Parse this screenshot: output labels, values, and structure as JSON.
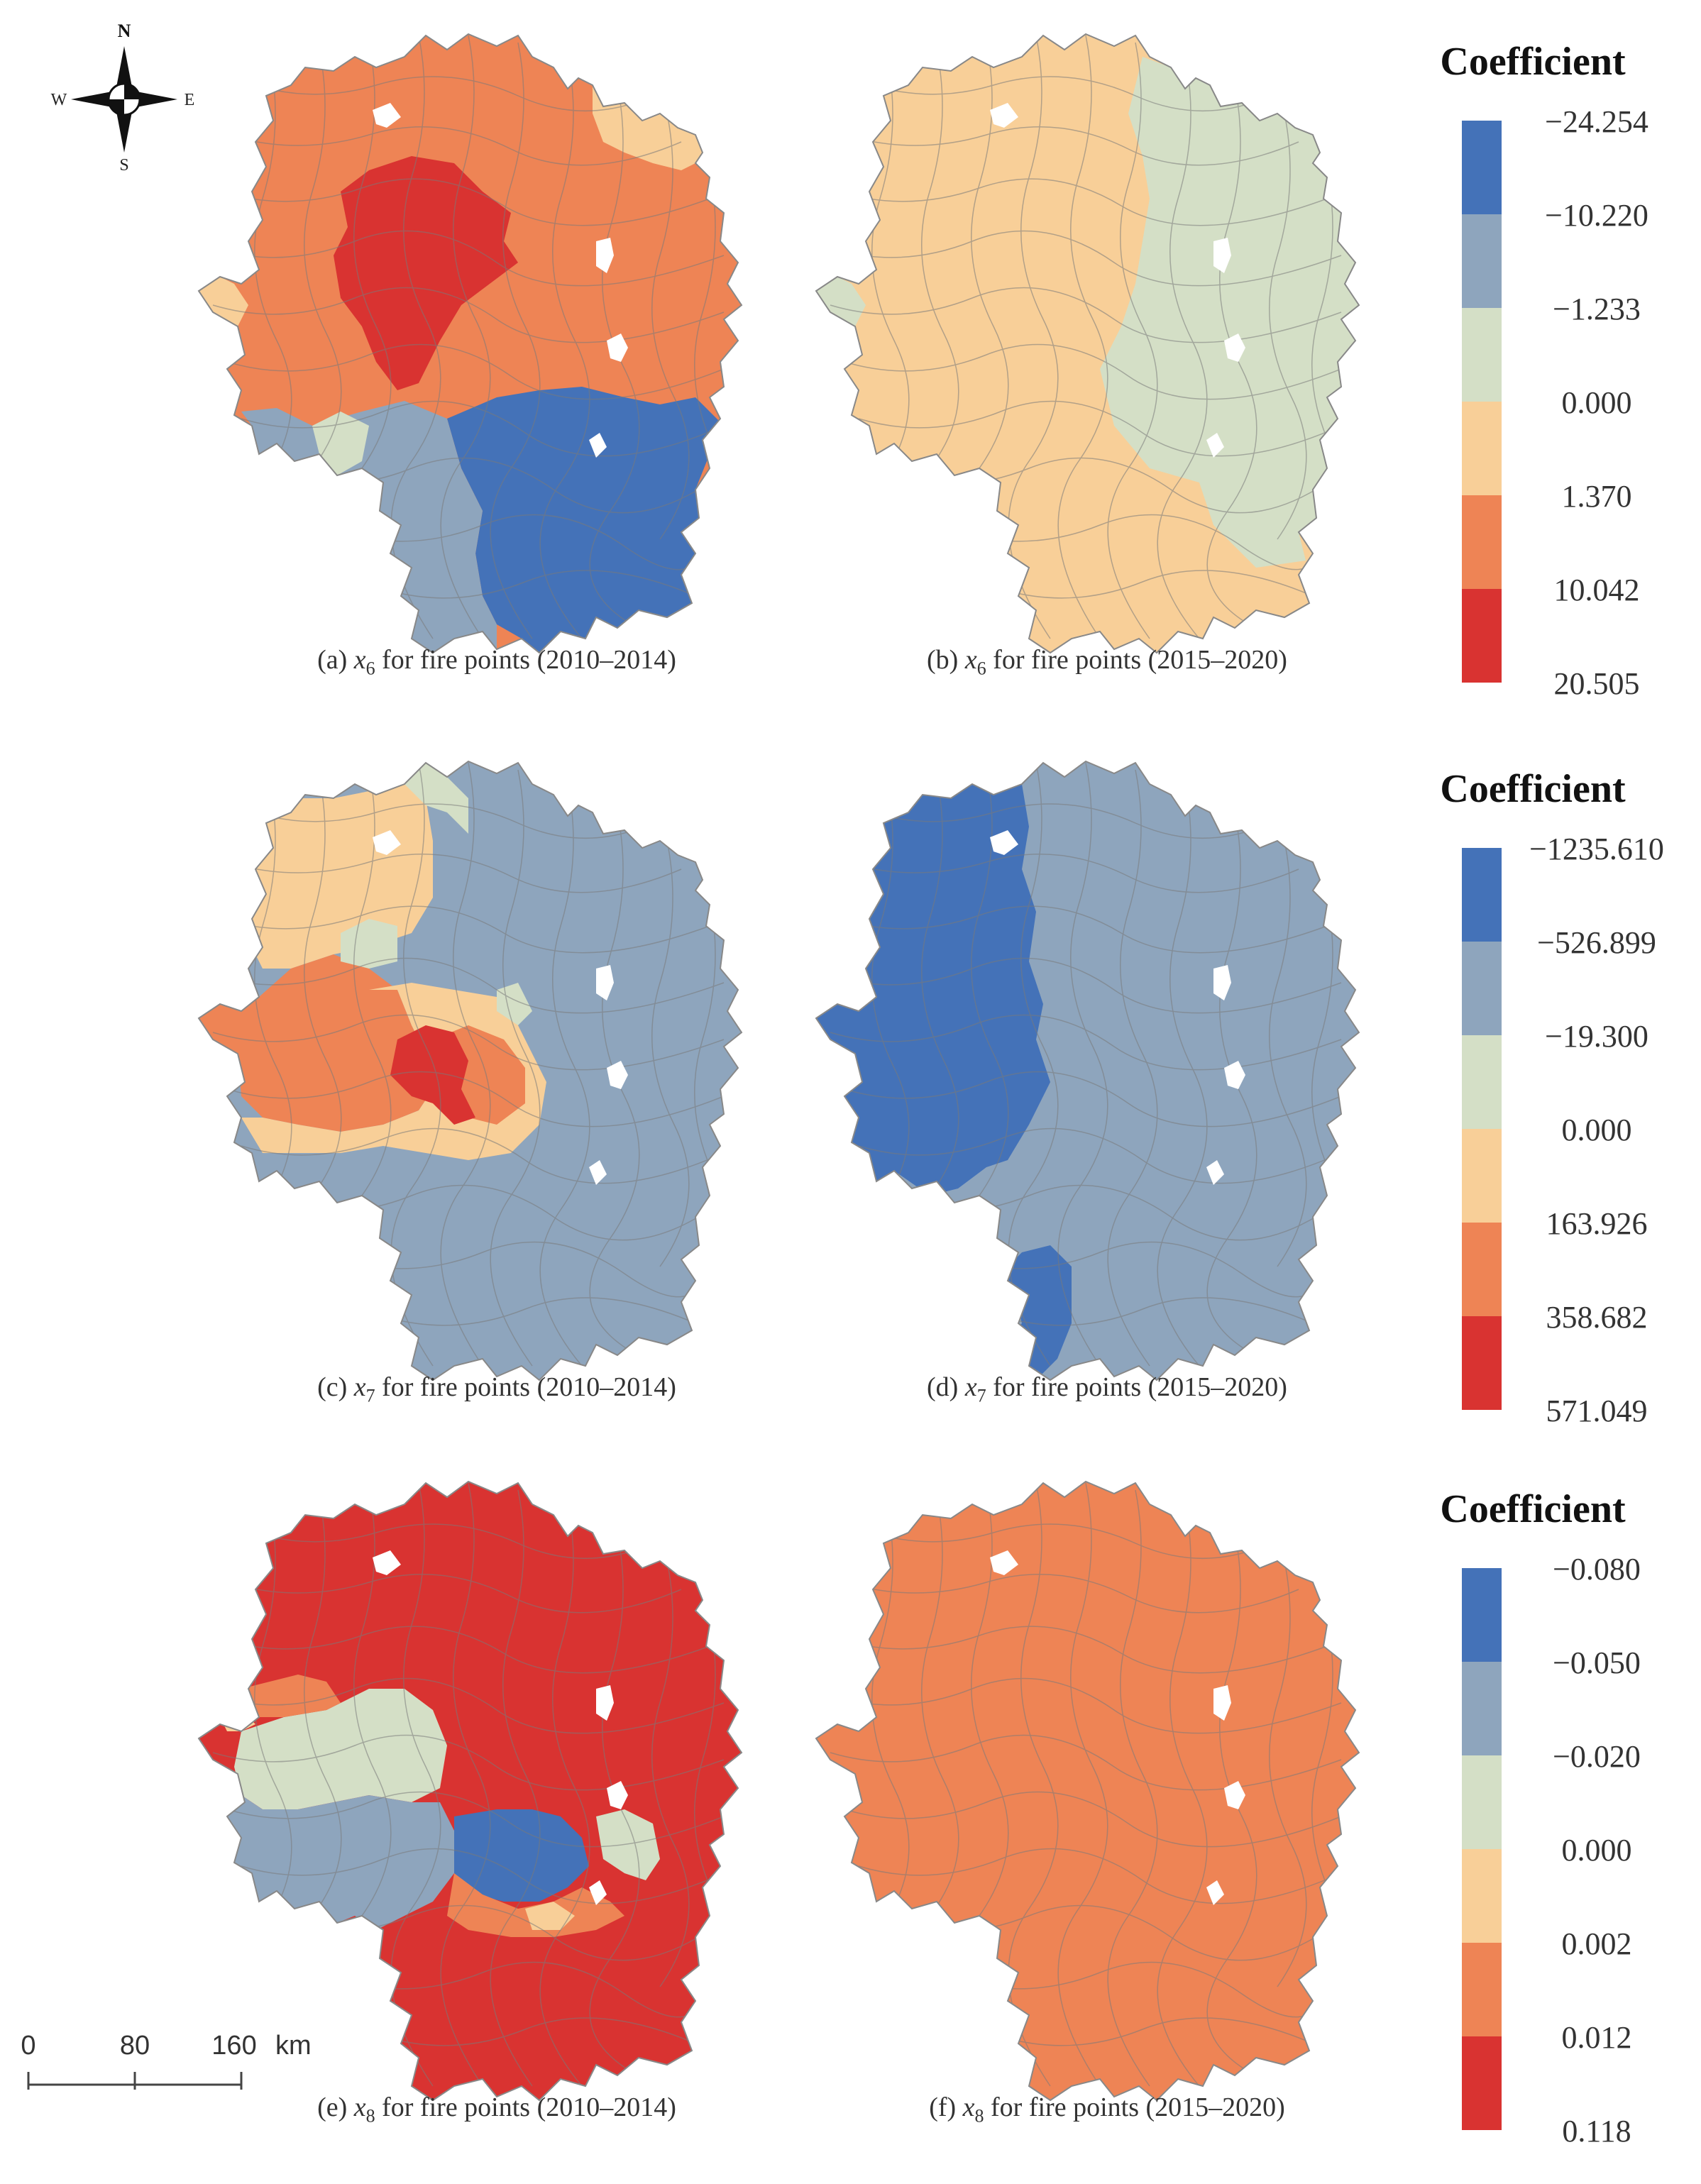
{
  "compass": {
    "n": "N",
    "s": "S",
    "e": "E",
    "w": "W"
  },
  "scale_bar": {
    "t0": "0",
    "t1": "80",
    "t2": "160",
    "unit": "km"
  },
  "colors": {
    "blue_dark": "#4472b8",
    "blue_mid": "#8ea5bd",
    "pale_green": "#d4dfc6",
    "light_orange": "#f8cf98",
    "orange": "#ee8455",
    "red": "#d93331",
    "boundary": "#7a7a7a",
    "holes": "#ffffff"
  },
  "legends": [
    {
      "title": "Coefficient",
      "values": [
        "−24.254",
        "−10.220",
        "−1.233",
        "0.000",
        "1.370",
        "10.042",
        "20.505"
      ]
    },
    {
      "title": "Coefficient",
      "values": [
        "−1235.610",
        "−526.899",
        "−19.300",
        "0.000",
        "163.926",
        "358.682",
        "571.049"
      ]
    },
    {
      "title": "Coefficient",
      "values": [
        "−0.080",
        "−0.050",
        "−0.020",
        "0.000",
        "0.002",
        "0.012",
        "0.118"
      ]
    }
  ],
  "panels": [
    {
      "label": "(a)",
      "var": "x",
      "sub": "6",
      "text": "for fire points (2010–2014)",
      "fill": "orange",
      "regions": [
        {
          "name": "core-red",
          "class": "red"
        },
        {
          "name": "south-blue",
          "class": "blue_dark"
        },
        {
          "name": "south-west-grey",
          "class": "blue_mid"
        },
        {
          "name": "ne-corner",
          "class": "light_orange"
        },
        {
          "name": "ne-tip",
          "class": "pale_green"
        },
        {
          "name": "west-tip",
          "class": "light_orange"
        },
        {
          "name": "sw-patch",
          "class": "pale_green"
        }
      ]
    },
    {
      "label": "(b)",
      "var": "x",
      "sub": "6",
      "text": "for fire points (2015–2020)",
      "fill": "light_orange",
      "regions": [
        {
          "name": "east-green",
          "class": "pale_green"
        },
        {
          "name": "west-tip",
          "class": "pale_green"
        }
      ]
    },
    {
      "label": "(c)",
      "var": "x",
      "sub": "7",
      "text": "for fire points (2010–2014)",
      "fill": "blue_mid",
      "regions": [
        {
          "name": "nw-light",
          "class": "light_orange"
        },
        {
          "name": "north-green",
          "class": "pale_green"
        },
        {
          "name": "west-orange",
          "class": "orange"
        },
        {
          "name": "centre-light",
          "class": "light_orange"
        },
        {
          "name": "centre-orange",
          "class": "orange"
        },
        {
          "name": "centre-red",
          "class": "red"
        },
        {
          "name": "east-green",
          "class": "pale_green"
        },
        {
          "name": "mid-green",
          "class": "pale_green"
        }
      ]
    },
    {
      "label": "(d)",
      "var": "x",
      "sub": "7",
      "text": "for fire points (2015–2020)",
      "fill": "blue_mid",
      "regions": [
        {
          "name": "west-blue",
          "class": "blue_dark"
        },
        {
          "name": "south-blue",
          "class": "blue_dark"
        }
      ]
    },
    {
      "label": "(e)",
      "var": "x",
      "sub": "8",
      "text": "for fire points (2010–2014)",
      "fill": "red",
      "regions": [
        {
          "name": "mid-green-band",
          "class": "pale_green"
        },
        {
          "name": "west-grey",
          "class": "blue_mid"
        },
        {
          "name": "mid-orange",
          "class": "orange"
        },
        {
          "name": "mid-light",
          "class": "light_orange"
        },
        {
          "name": "centre-blue",
          "class": "blue_dark"
        },
        {
          "name": "east-green",
          "class": "pale_green"
        },
        {
          "name": "south-orange",
          "class": "orange"
        },
        {
          "name": "south-light",
          "class": "light_orange"
        }
      ]
    },
    {
      "label": "(f)",
      "var": "x",
      "sub": "8",
      "text": "for fire points (2015–2020)",
      "fill": "orange",
      "regions": []
    }
  ]
}
